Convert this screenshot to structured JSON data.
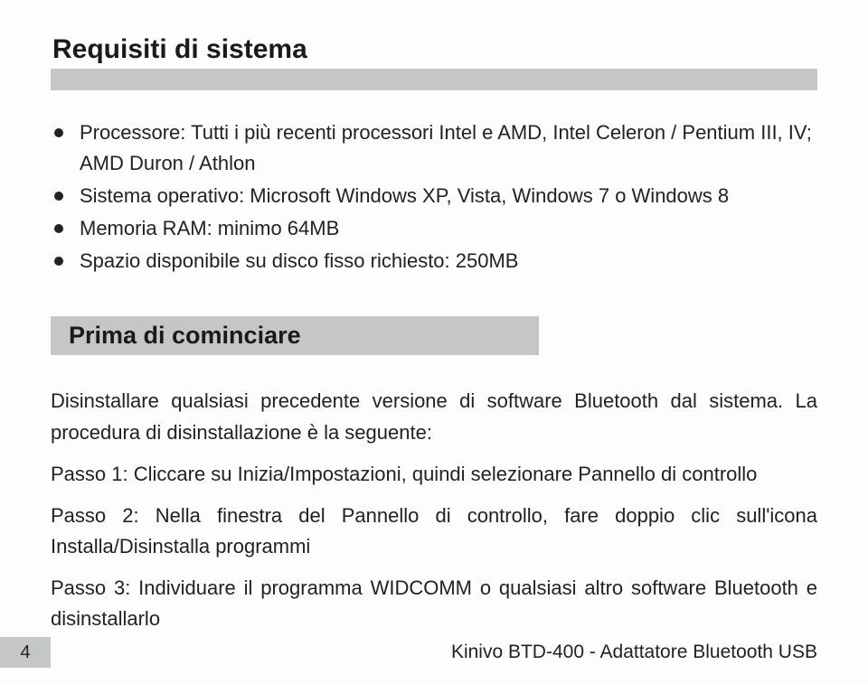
{
  "colors": {
    "background": "#fdfdfb",
    "heading_underline": "#c5c6c7",
    "text": "#222222",
    "bullet": "#222222"
  },
  "typography": {
    "heading_fontsize_pt": 22,
    "body_fontsize_pt": 16,
    "heading_weight": 700
  },
  "section1": {
    "title": "Requisiti di sistema",
    "bullets": [
      "Processore: Tutti i più recenti processori Intel e AMD, Intel Celeron / Pentium III, IV; AMD Duron / Athlon",
      "Sistema operativo: Microsoft Windows XP, Vista, Windows 7 o Windows 8",
      "Memoria RAM: minimo 64MB",
      "Spazio disponibile su disco fisso richiesto: 250MB"
    ]
  },
  "section2": {
    "title": "Prima di cominciare",
    "intro": "Disinstallare qualsiasi precedente versione di software Bluetooth dal    sistema. La procedura di disinstallazione è la seguente:",
    "steps": [
      "Passo 1: Cliccare su Inizia/Impostazioni, quindi selezionare Pannello di controllo",
      "Passo 2: Nella finestra del Pannello di controllo, fare doppio clic sull'icona Installa/Disinstalla programmi",
      "Passo 3: Individuare il programma WIDCOMM o qualsiasi altro software Bluetooth e disinstallarlo"
    ]
  },
  "footer": {
    "page_number": "4",
    "doc_title": "Kinivo BTD-400 - Adattatore Bluetooth USB"
  }
}
